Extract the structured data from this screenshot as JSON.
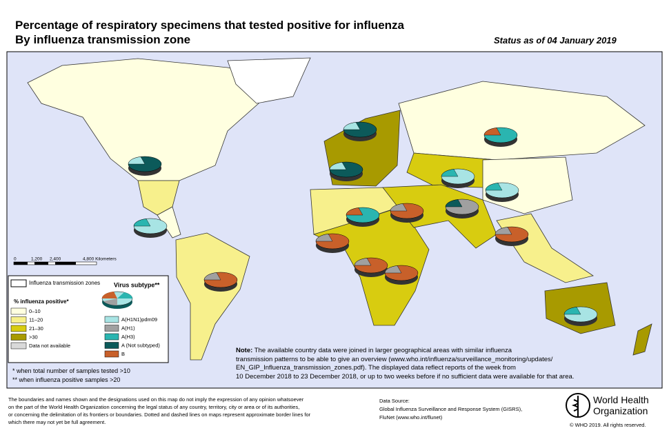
{
  "header": {
    "title_line1": "Percentage of respiratory specimens that tested positive for influenza",
    "title_line2": "By influenza transmission zone",
    "status": "Status as of 04 January 2019"
  },
  "scale_bar": {
    "labels": [
      "0",
      "1,200",
      "2,400",
      "4,800 Kilometers"
    ]
  },
  "legend": {
    "zones_label": "Influenza transmission zones",
    "percent_title": "% influenza positive*",
    "percent_classes": [
      {
        "label": "0–10",
        "color": "#ffffe0"
      },
      {
        "label": "11–20",
        "color": "#f7f08c"
      },
      {
        "label": "21–30",
        "color": "#d8cc10"
      },
      {
        "label": ">30",
        "color": "#a89a00"
      },
      {
        "label": "Data not available",
        "color": "#d9d9d9"
      }
    ],
    "subtype_title": "Virus subtype**",
    "subtypes": [
      {
        "label": "A(H1N1)pdm09",
        "color": "#a8e4e4"
      },
      {
        "label": "A(H1)",
        "color": "#a0a0a0"
      },
      {
        "label": "A(H3)",
        "color": "#2ab5b0"
      },
      {
        "label": "A (Not subtyped)",
        "color": "#0c5a5a"
      },
      {
        "label": "B",
        "color": "#c8602a"
      }
    ]
  },
  "footnotes": [
    "*   when total number of samples tested >10",
    "** when influenza positive samples >20"
  ],
  "note": {
    "label": "Note:",
    "lines": [
      " The available country data were joined in larger geographical areas with similar influenza",
      "transmission patterns to be able to give an overview (www.who.int/influenza/surveillance_monitoring/updates/",
      "EN_GIP_Influenza_transmission_zones.pdf). The displayed data reflect reports of the week from",
      "10 December 2018 to 23 December 2018, or up to two weeks before if no sufficient data were available for that area."
    ]
  },
  "disclaimer": [
    "The boundaries and names shown and the designations used on this map do not imply the expression of any opinion whatsoever",
    "on the part of the World Health Organization concerning the legal status of any country, territory, city or area or of its authorities,",
    "or concerning the delimitation of its frontiers or boundaries. Dotted and dashed lines on maps represent approximate border lines for",
    "which there may not yet be full agreement."
  ],
  "data_source": [
    "Data Source:",
    "Global Influenza Surveillance and Response System (GISRS),",
    "FluNet (www.who.int/flunet)"
  ],
  "logo": {
    "line1": "World Health",
    "line2": "Organization"
  },
  "copyright": "© WHO 2019. All rights reserved."
}
